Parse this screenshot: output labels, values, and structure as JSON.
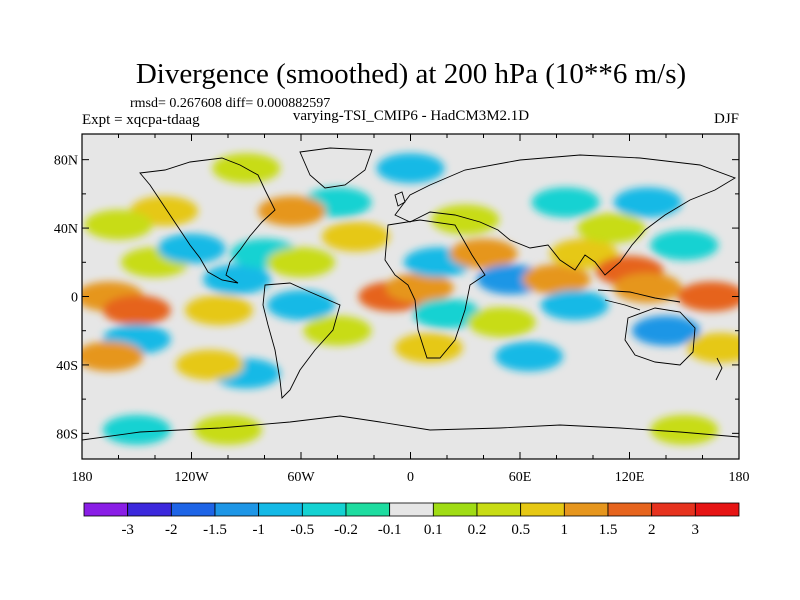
{
  "chart_data": {
    "type": "heatmap",
    "title": "Divergence (smoothed) at 200 hPa (10**6 m/s)",
    "stats": "rmsd= 0.267608 diff= 0.000882597",
    "left_label": "Expt = xqcpa-tdaag",
    "center_label": "varying-TSI_CMIP6 - HadCM3M2.1D",
    "season": "DJF",
    "xlim": [
      -180,
      180
    ],
    "ylim": [
      -90,
      90
    ],
    "x_ticks": [
      {
        "value": -180,
        "label": "180"
      },
      {
        "value": -120,
        "label": "120W"
      },
      {
        "value": -60,
        "label": "60W"
      },
      {
        "value": 0,
        "label": "0"
      },
      {
        "value": 60,
        "label": "60E"
      },
      {
        "value": 120,
        "label": "120E"
      },
      {
        "value": 180,
        "label": "180"
      }
    ],
    "y_ticks": [
      {
        "value": 80,
        "label": "80N"
      },
      {
        "value": 40,
        "label": "40N"
      },
      {
        "value": 0,
        "label": "0"
      },
      {
        "value": -40,
        "label": "40S"
      },
      {
        "value": -80,
        "label": "80S"
      }
    ],
    "colorbar": {
      "labels": [
        "-3",
        "-2",
        "-1.5",
        "-1",
        "-0.5",
        "-0.2",
        "-0.1",
        "0.1",
        "0.2",
        "0.5",
        "1",
        "1.5",
        "2",
        "3"
      ],
      "colors": [
        "#8a1ee6",
        "#3c28dc",
        "#1e64e6",
        "#1e96e6",
        "#14b9e6",
        "#14d2d2",
        "#1edca0",
        "#e6e6e6",
        "#a0dc14",
        "#c8dc14",
        "#e6c814",
        "#e6961e",
        "#e6641e",
        "#e6321e",
        "#e61414"
      ]
    },
    "fields": [
      {
        "lon": -165,
        "lat": 0,
        "level": 11
      },
      {
        "lon": -150,
        "lat": -8,
        "level": 12
      },
      {
        "lon": -140,
        "lat": 20,
        "level": 9
      },
      {
        "lon": -120,
        "lat": 28,
        "level": 4
      },
      {
        "lon": -135,
        "lat": 50,
        "level": 10
      },
      {
        "lon": -160,
        "lat": 42,
        "level": 9
      },
      {
        "lon": -150,
        "lat": -25,
        "level": 4
      },
      {
        "lon": -165,
        "lat": -35,
        "level": 11
      },
      {
        "lon": -105,
        "lat": -8,
        "level": 10
      },
      {
        "lon": -95,
        "lat": 10,
        "level": 4
      },
      {
        "lon": -80,
        "lat": 25,
        "level": 5
      },
      {
        "lon": -60,
        "lat": 20,
        "level": 9
      },
      {
        "lon": -30,
        "lat": 35,
        "level": 10
      },
      {
        "lon": -40,
        "lat": 55,
        "level": 5
      },
      {
        "lon": -65,
        "lat": 50,
        "level": 11
      },
      {
        "lon": -60,
        "lat": -5,
        "level": 4
      },
      {
        "lon": -40,
        "lat": -20,
        "level": 9
      },
      {
        "lon": -90,
        "lat": -45,
        "level": 4
      },
      {
        "lon": -110,
        "lat": -40,
        "level": 10
      },
      {
        "lon": -10,
        "lat": 0,
        "level": 12
      },
      {
        "lon": 5,
        "lat": 5,
        "level": 11
      },
      {
        "lon": 15,
        "lat": 20,
        "level": 4
      },
      {
        "lon": 20,
        "lat": -10,
        "level": 5
      },
      {
        "lon": 10,
        "lat": -30,
        "level": 10
      },
      {
        "lon": 40,
        "lat": 25,
        "level": 11
      },
      {
        "lon": 30,
        "lat": 45,
        "level": 9
      },
      {
        "lon": 55,
        "lat": 10,
        "level": 3
      },
      {
        "lon": 50,
        "lat": -15,
        "level": 9
      },
      {
        "lon": 65,
        "lat": -35,
        "level": 4
      },
      {
        "lon": 80,
        "lat": 10,
        "level": 11
      },
      {
        "lon": 90,
        "lat": -5,
        "level": 4
      },
      {
        "lon": 95,
        "lat": 25,
        "level": 10
      },
      {
        "lon": 85,
        "lat": 55,
        "level": 5
      },
      {
        "lon": 110,
        "lat": 40,
        "level": 9
      },
      {
        "lon": 120,
        "lat": 15,
        "level": 12
      },
      {
        "lon": 130,
        "lat": 5,
        "level": 11
      },
      {
        "lon": 140,
        "lat": -20,
        "level": 3
      },
      {
        "lon": 150,
        "lat": 30,
        "level": 5
      },
      {
        "lon": 165,
        "lat": 0,
        "level": 12
      },
      {
        "lon": 170,
        "lat": -30,
        "level": 10
      },
      {
        "lon": 130,
        "lat": 55,
        "level": 4
      },
      {
        "lon": -100,
        "lat": -78,
        "level": 9
      },
      {
        "lon": -150,
        "lat": -78,
        "level": 5
      },
      {
        "lon": 150,
        "lat": -78,
        "level": 9
      },
      {
        "lon": 0,
        "lat": 75,
        "level": 4
      },
      {
        "lon": -90,
        "lat": 75,
        "level": 9
      }
    ]
  }
}
